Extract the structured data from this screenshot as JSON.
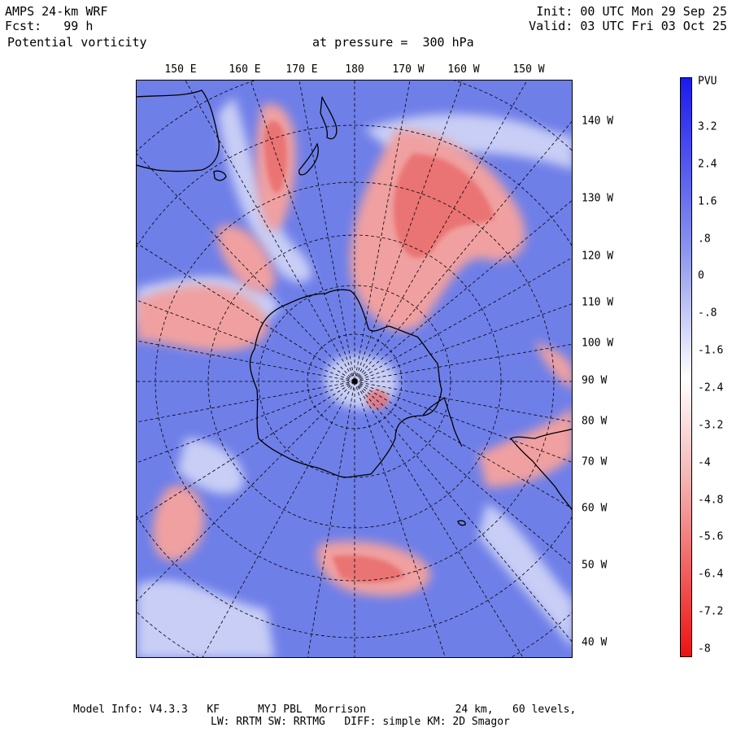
{
  "header": {
    "model": "AMPS 24-km WRF",
    "forecast_label": "Fcst:",
    "forecast_hours": "99 h",
    "field": "Potential vorticity",
    "pressure_label": "at pressure =",
    "pressure_value": "300 hPa",
    "init": "Init: 00 UTC Mon 29 Sep 25",
    "valid": "Valid: 03 UTC Fri 03 Oct 25"
  },
  "map": {
    "top_longitudes": [
      "150 E",
      "160 E",
      "170 E",
      "180",
      "170 W",
      "160 W",
      "150 W"
    ],
    "right_longitudes": [
      "140 W",
      "130 W",
      "120 W",
      "110 W",
      "100 W",
      "90 W",
      "80 W",
      "70 W",
      "60 W",
      "50 W",
      "40 W"
    ]
  },
  "colorbar": {
    "unit": "PVU",
    "labels": [
      "3.2",
      "2.4",
      "1.6",
      ".8",
      "0",
      "-.8",
      "-1.6",
      "-2.4",
      "-3.2",
      "-4",
      "-4.8",
      "-5.6",
      "-6.4",
      "-7.2",
      "-8"
    ],
    "colors": {
      "high": "#1a1aee",
      "mid": "#ffffff",
      "low": "#ee1111"
    }
  },
  "footer": {
    "line1": "Model Info: V4.3.3   KF      MYJ PBL  Morrison              24 km,   60 levels,",
    "line2": "LW: RRTM SW: RRTMG   DIFF: simple KM: 2D Smagor"
  }
}
